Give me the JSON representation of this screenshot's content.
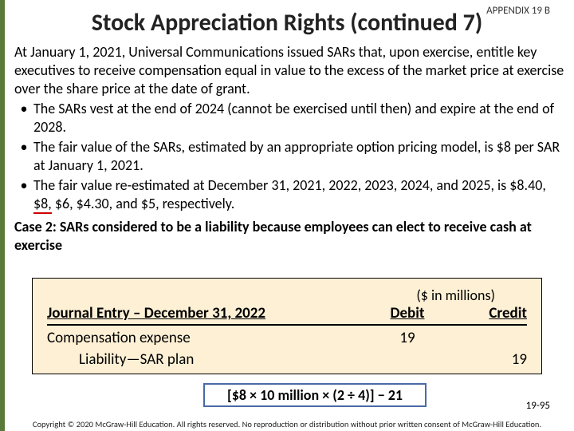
{
  "appendix_label": "APPENDIX 19 B",
  "title": "Stock Appreciation Rights (continued 7)",
  "intro": "At January 1, 2021, Universal Communications issued SARs that, upon exercise, entitle key executives to receive compensation equal in value to the excess of the market price at exercise over the share price at the date of grant.",
  "bullets": [
    "The SARs vest at the end of 2024 (cannot be exercised until then) and expire at the end of 2028.",
    "The fair value of the SARs, estimated by an appropriate option pricing model, is $8 per SAR at January 1, 2021."
  ],
  "bullet3_pre": "The fair value re-estimated at December 31, 2021, 2022, 2023, 2024, and 2025, is $8.40, ",
  "bullet3_val": "$8,",
  "bullet3_post": " $6, $4.30, and $5, respectively.",
  "case2": "Case 2: SARs considered to be a liability because employees can elect to receive cash at exercise",
  "table": {
    "millions": "($ in millions)",
    "je_header": "Journal Entry – December 31, 2022",
    "debit_header": "Debit",
    "credit_header": "Credit",
    "row1_acct": "Compensation expense",
    "row1_debit": "19",
    "row2_acct": "Liability—SAR plan",
    "row2_credit": "19"
  },
  "calc": "[$8 × 10 million × (2 ÷ 4)] − 21",
  "pagenum": "19-95",
  "copyright": "Copyright © 2020 McGraw-Hill Education. All rights reserved. No reproduction or distribution without prior written consent of McGraw-Hill Education.",
  "colors": {
    "sidebar": "#5a7a3a",
    "table_bg": "#fdf0d5",
    "calc_border": "#4a6aa5",
    "underline": "#c00"
  }
}
